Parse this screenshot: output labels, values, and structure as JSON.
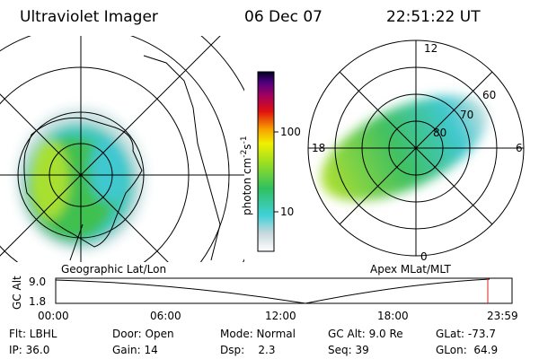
{
  "header": {
    "title": "Ultraviolet Imager",
    "date": "06 Dec 07",
    "time": "22:51:22 UT"
  },
  "colorbar": {
    "label": {
      "base": "photon cm",
      "exp1": "-2",
      "unit2": "s",
      "exp2": "-1"
    },
    "ticks": [
      "100",
      "10"
    ]
  },
  "geo_panel": {
    "caption": "Geographic Lat/Lon"
  },
  "mag_panel": {
    "caption": "Apex MLat/MLT",
    "mlt_labels": [
      "12",
      "18",
      "6",
      "0"
    ],
    "lat_labels": [
      "60",
      "70",
      "80"
    ]
  },
  "timeline": {
    "axis_label": "GC Alt",
    "y_labels": [
      "9.0",
      "1.8"
    ],
    "x_labels": [
      "00:00",
      "06:00",
      "12:00",
      "18:00",
      "23:59"
    ]
  },
  "status": {
    "rows": [
      [
        "Flt: LBHL",
        "Door: Open",
        "Mode: Normal",
        "GC Alt: 9.0 Re",
        "GLat: -73.7"
      ],
      [
        "IP: 36.0",
        "Gain: 14",
        "Dsp:    2.3",
        "Seq: 39",
        "GLon:  64.9"
      ]
    ]
  }
}
